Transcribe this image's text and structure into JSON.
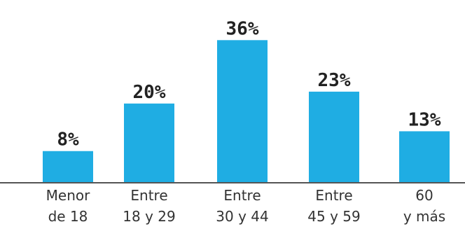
{
  "chart_data": {
    "type": "bar",
    "title": "",
    "xlabel": "",
    "ylabel": "",
    "categories": [
      [
        "Menor",
        "de 18"
      ],
      [
        "Entre",
        "18 y 29"
      ],
      [
        "Entre",
        "30 y 44"
      ],
      [
        "Entre",
        "45 y 59"
      ],
      [
        "60",
        "y más"
      ]
    ],
    "values": [
      8,
      20,
      36,
      23,
      13
    ],
    "data_labels": [
      "8%",
      "20%",
      "36%",
      "23%",
      "13%"
    ],
    "ylim": [
      0,
      38
    ],
    "grid": false,
    "bar_color": "#1fade3"
  }
}
